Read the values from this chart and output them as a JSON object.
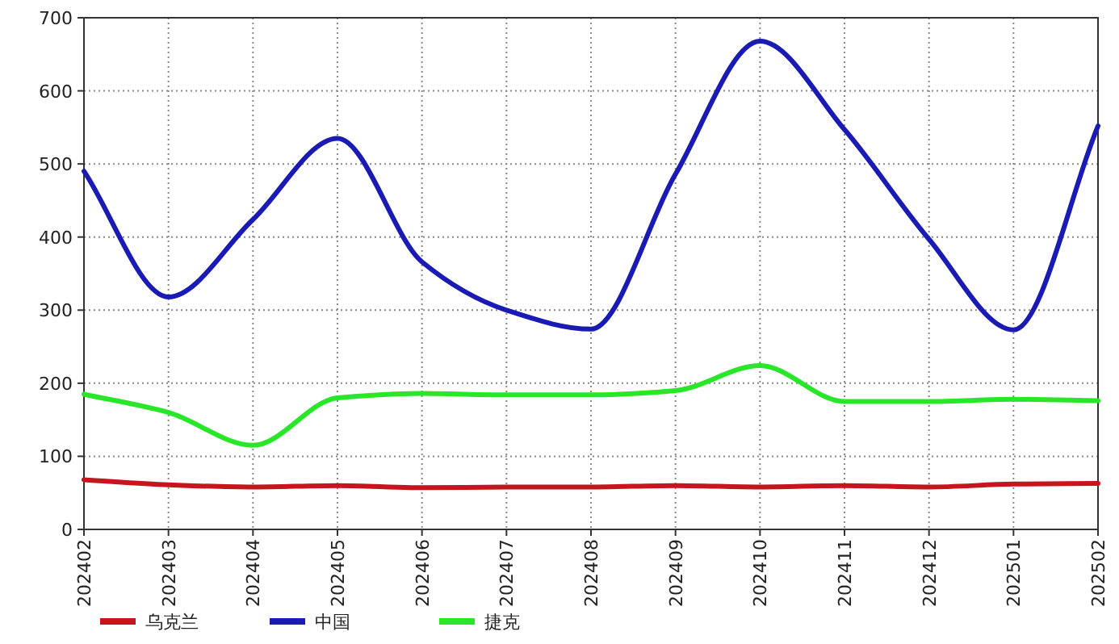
{
  "chart_data": {
    "type": "line",
    "categories": [
      "202402",
      "202403",
      "202404",
      "202405",
      "202406",
      "202407",
      "202408",
      "202409",
      "202410",
      "202411",
      "202412",
      "202501",
      "202502"
    ],
    "series": [
      {
        "name": "乌克兰",
        "color": "#c8141e",
        "values": [
          68,
          61,
          58,
          60,
          57,
          58,
          58,
          60,
          58,
          60,
          58,
          62,
          63
        ]
      },
      {
        "name": "中国",
        "color": "#1a1ab4",
        "values": [
          490,
          318,
          424,
          535,
          366,
          300,
          274,
          486,
          668,
          547,
          397,
          273,
          552
        ]
      },
      {
        "name": "捷克",
        "color": "#28e628",
        "values": [
          185,
          160,
          115,
          180,
          186,
          184,
          184,
          190,
          224,
          175,
          175,
          178,
          176
        ]
      }
    ],
    "ylim": [
      0,
      700
    ],
    "yticks": [
      0,
      100,
      200,
      300,
      400,
      500,
      600,
      700
    ],
    "grid": true,
    "legend": "bottom",
    "line_style": "solid",
    "marker": "none"
  }
}
